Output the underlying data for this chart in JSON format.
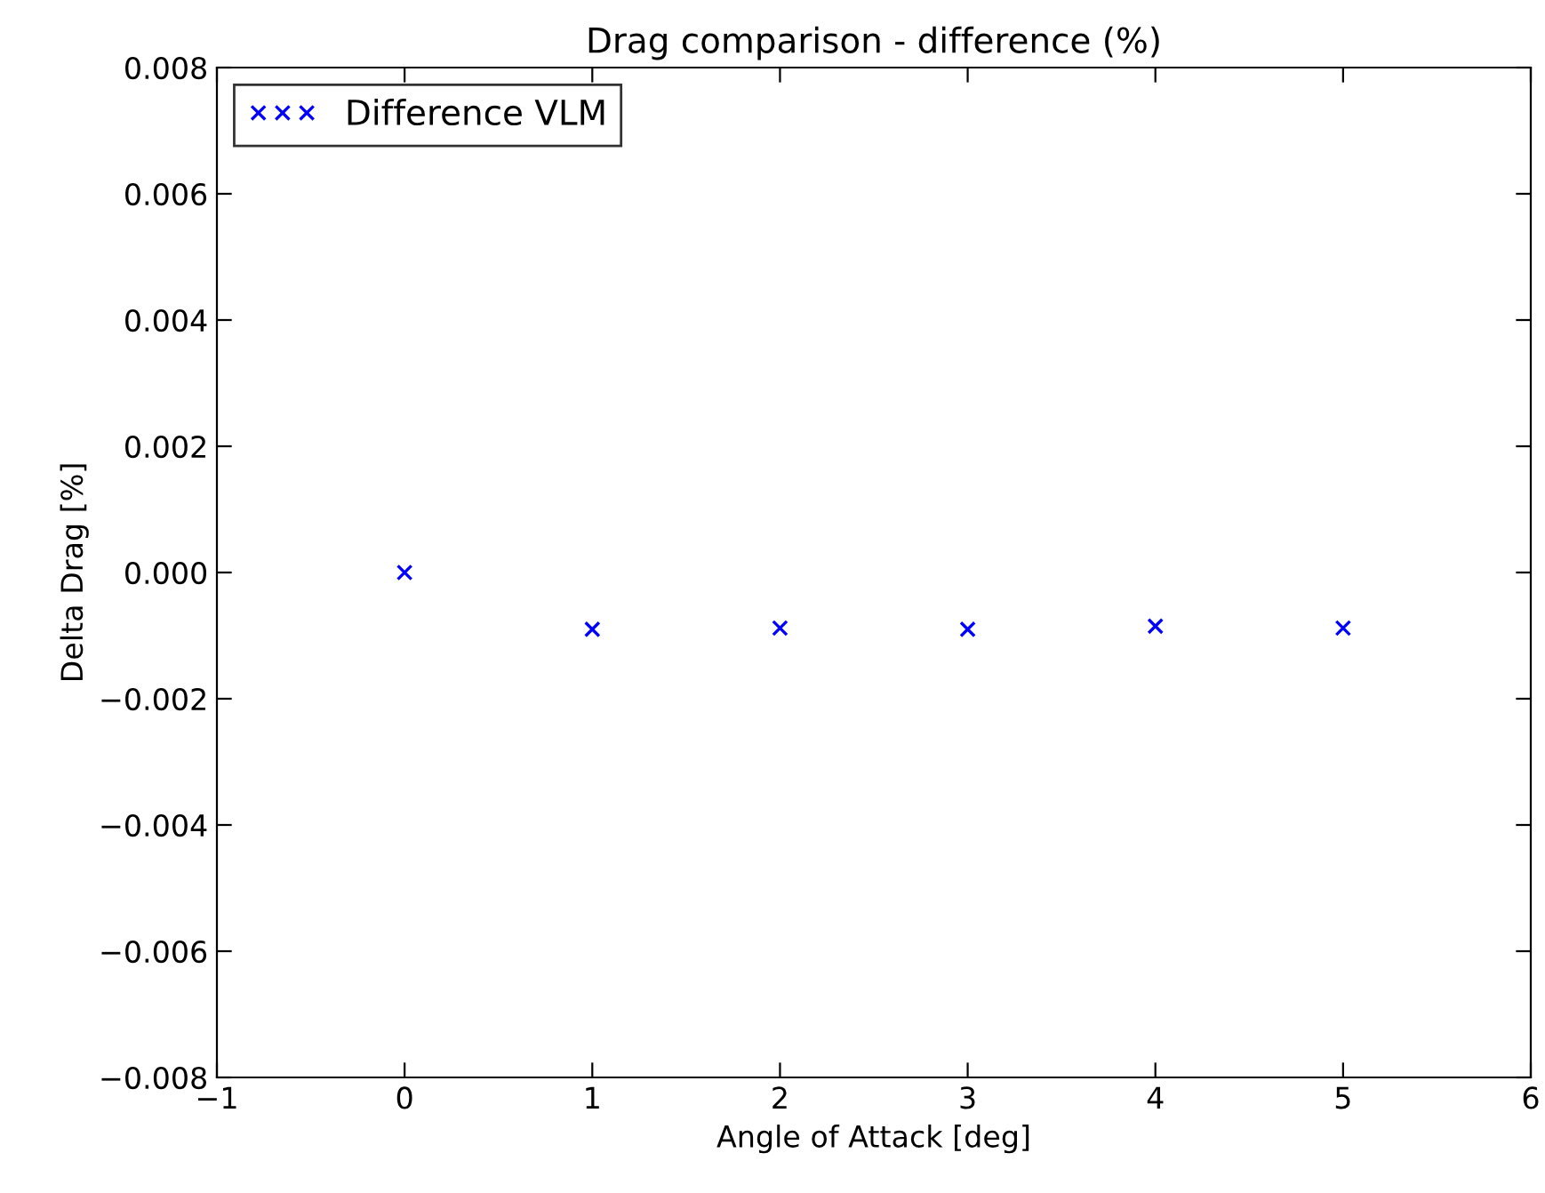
{
  "chart_data": {
    "type": "scatter",
    "title": "Drag comparison - difference (%)",
    "xlabel": "Angle of Attack [deg]",
    "ylabel": "Delta Drag [%]",
    "x": [
      0,
      1,
      2,
      3,
      4,
      5
    ],
    "series": [
      {
        "name": "Difference VLM",
        "color": "#0000ff",
        "values": [
          0.0,
          -0.0009,
          -0.00088,
          -0.0009,
          -0.00085,
          -0.00088
        ]
      }
    ],
    "marker": "cross",
    "legend": "top left",
    "grid": false,
    "xlim": [
      -1,
      6
    ],
    "xticks": [
      {
        "value": -1,
        "label": "−1"
      },
      0,
      1,
      2,
      3,
      4,
      5,
      6
    ],
    "ylim": [
      -0.008,
      0.008
    ],
    "yticks": [
      {
        "value": -0.008,
        "label": "−0.008"
      },
      {
        "value": -0.006,
        "label": "−0.006"
      },
      {
        "value": -0.004,
        "label": "−0.004"
      },
      {
        "value": -0.002,
        "label": "−0.002"
      },
      {
        "value": 0,
        "label": "0.000"
      },
      {
        "value": 0.002,
        "label": "0.002"
      },
      {
        "value": 0.004,
        "label": "0.004"
      },
      {
        "value": 0.006,
        "label": "0.006"
      },
      {
        "value": 0.008,
        "label": "0.008"
      }
    ]
  }
}
